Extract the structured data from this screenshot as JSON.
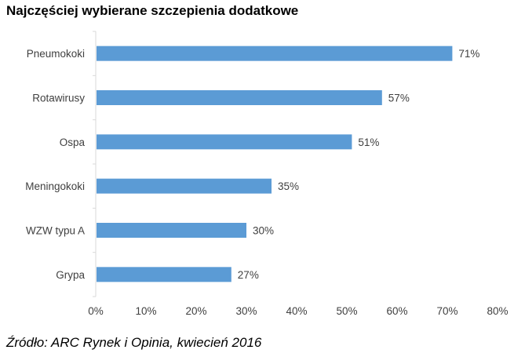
{
  "chart_data": {
    "type": "bar",
    "orientation": "horizontal",
    "title": "Najczęściej wybierane szczepienia dodatkowe",
    "categories": [
      "Pneumokoki",
      "Rotawirusy",
      "Ospa",
      "Meningokoki",
      "WZW typu A",
      "Grypa"
    ],
    "values": [
      71,
      57,
      51,
      35,
      30,
      27
    ],
    "data_labels": [
      "71%",
      "57%",
      "51%",
      "35%",
      "30%",
      "27%"
    ],
    "xlim": [
      0,
      80
    ],
    "x_ticks": [
      0,
      10,
      20,
      30,
      40,
      50,
      60,
      70,
      80
    ],
    "x_tick_labels": [
      "0%",
      "10%",
      "20%",
      "30%",
      "40%",
      "50%",
      "60%",
      "70%",
      "80%"
    ],
    "xlabel": "",
    "ylabel": "",
    "grid": false,
    "legend": "none",
    "bar_color": "#5B9BD5"
  },
  "source": "Źródło: ARC Rynek i Opinia, kwiecień 2016"
}
